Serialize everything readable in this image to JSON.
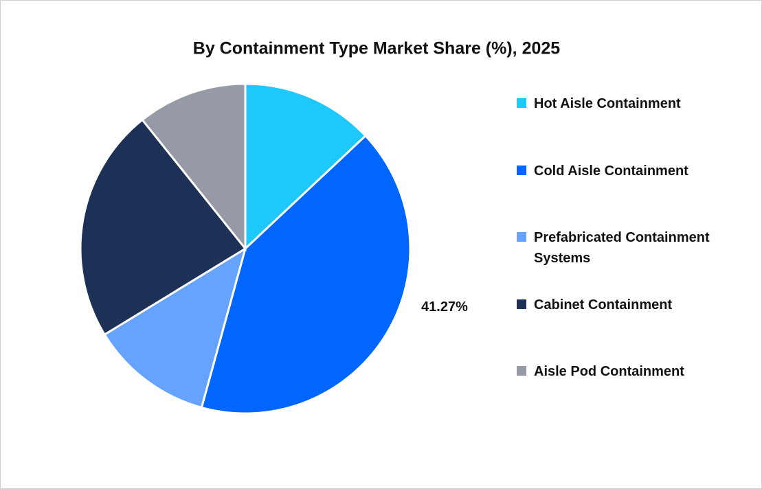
{
  "chart_data": {
    "type": "pie",
    "title": "By Containment Type Market Share (%), 2025",
    "categories": [
      "Hot Aisle Containment",
      "Cold Aisle Containment",
      "Prefabricated Containment Systems",
      "Cabinet Containment",
      "Aisle Pod Containment"
    ],
    "values": [
      13.0,
      41.27,
      12.0,
      23.0,
      10.73
    ],
    "value_labels": [
      null,
      "41.27%",
      null,
      null,
      null
    ],
    "colors": [
      "#1ec8fa",
      "#0066ff",
      "#66a3ff",
      "#1d3157",
      "#959aa6"
    ],
    "legend": "right"
  }
}
